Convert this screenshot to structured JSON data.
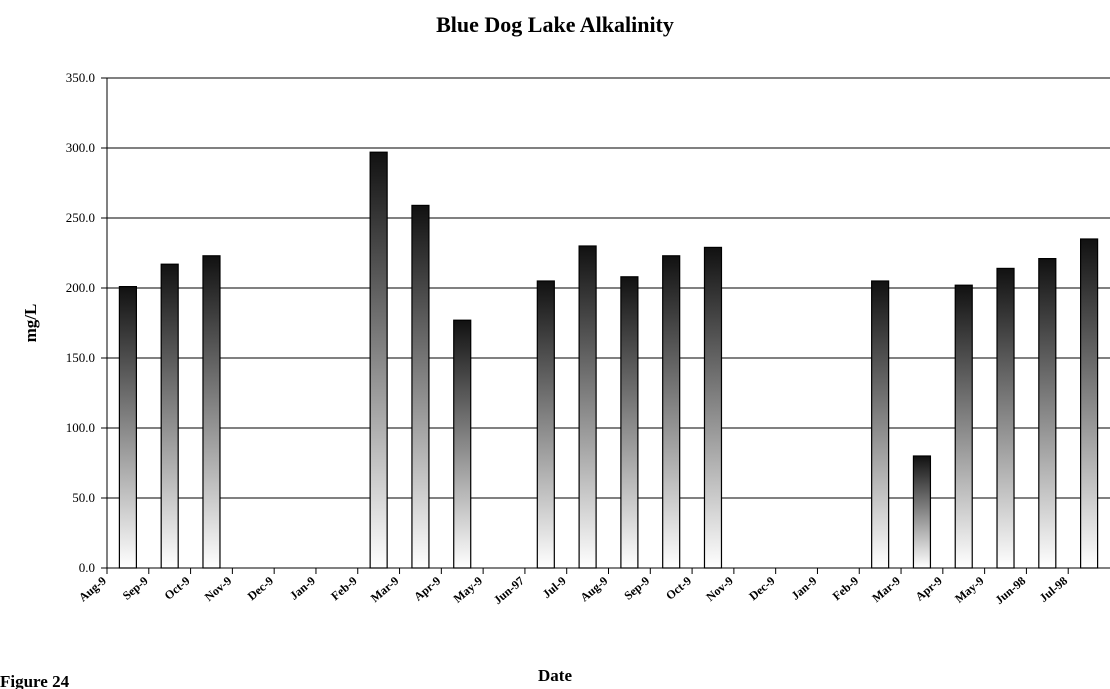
{
  "chart_data": {
    "type": "bar",
    "title": "Blue Dog Lake Alkalinity",
    "x_label": "Date",
    "y_label": "mg/L",
    "annotation": "Figure 24",
    "categories": [
      "Aug-9",
      "Sep-9",
      "Oct-9",
      "Nov-9",
      "Dec-9",
      "Jan-9",
      "Feb-9",
      "Mar-9",
      "Apr-9",
      "May-9",
      "Jun-97",
      "Jul-9",
      "Aug-9",
      "Sep-9",
      "Oct-9",
      "Nov-9",
      "Dec-9",
      "Jan-9",
      "Feb-9",
      "Mar-9",
      "Apr-9",
      "May-9",
      "Jun-98",
      "Jul-98"
    ],
    "values": [
      201,
      217,
      223,
      null,
      null,
      null,
      297,
      259,
      177,
      null,
      205,
      230,
      208,
      223,
      229,
      null,
      null,
      null,
      205,
      80,
      202,
      214,
      221,
      235
    ],
    "color": "#111111",
    "ylim": [
      0,
      350
    ],
    "yticks": [
      {
        "value": 0,
        "label": "0.0"
      },
      {
        "value": 50,
        "label": "50.0"
      },
      {
        "value": 100,
        "label": "100.0"
      },
      {
        "value": 150,
        "label": "150.0"
      },
      {
        "value": 200,
        "label": "200.0"
      },
      {
        "value": 250,
        "label": "250.0"
      },
      {
        "value": 300,
        "label": "300.0"
      },
      {
        "value": 350,
        "label": "350.0"
      }
    ],
    "grid": true
  }
}
